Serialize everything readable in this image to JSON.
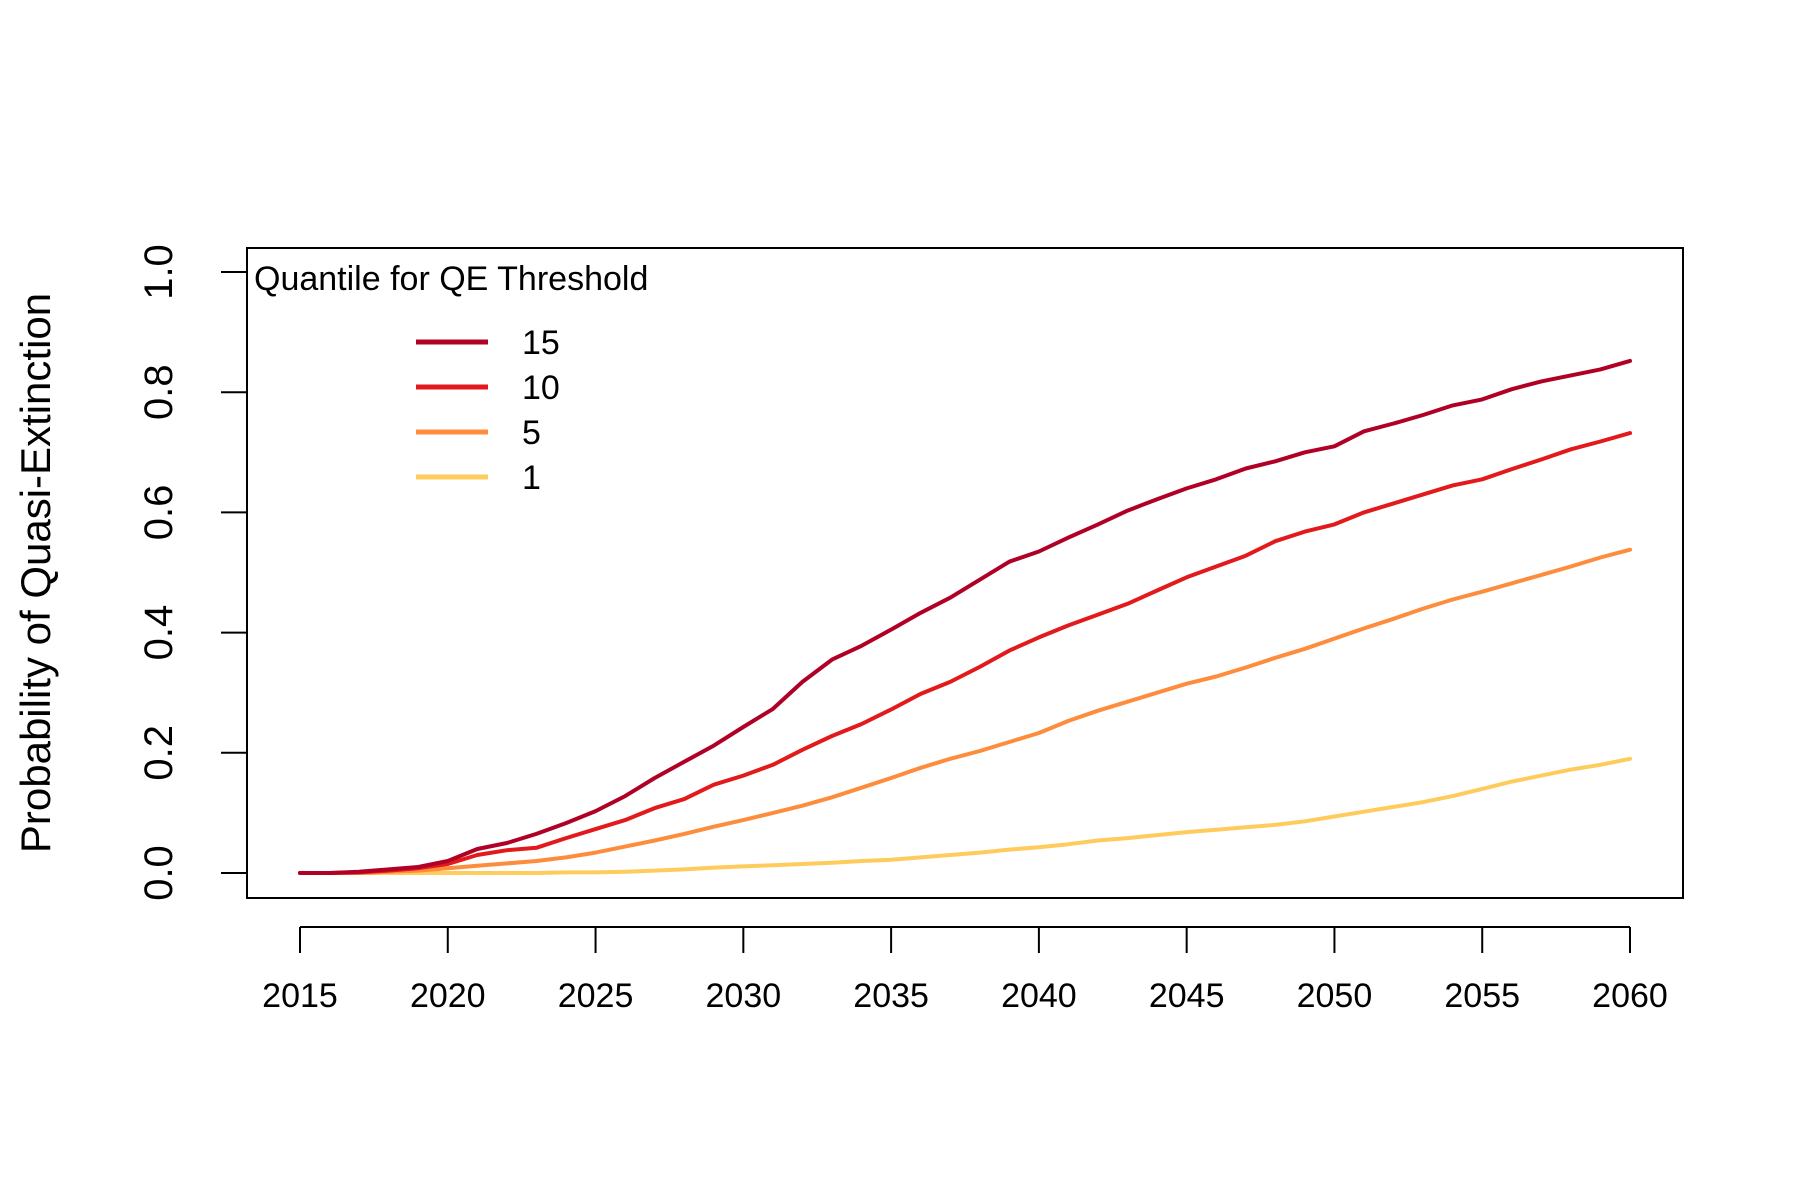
{
  "chart_data": {
    "type": "line",
    "title": "",
    "xlabel": "",
    "ylabel": "Probability of Quasi-Extinction",
    "xlim": [
      2015,
      2060
    ],
    "ylim": [
      0.0,
      1.0
    ],
    "x_ticks": [
      2015,
      2020,
      2025,
      2030,
      2035,
      2040,
      2045,
      2050,
      2055,
      2060
    ],
    "y_ticks": [
      "0.0",
      "0.2",
      "0.4",
      "0.6",
      "0.8",
      "1.0"
    ],
    "grid": false,
    "legend": {
      "title": "Quantile for QE Threshold",
      "position": "top-left"
    },
    "x": [
      2015,
      2016,
      2017,
      2018,
      2019,
      2020,
      2021,
      2022,
      2023,
      2024,
      2025,
      2026,
      2027,
      2028,
      2029,
      2030,
      2031,
      2032,
      2033,
      2034,
      2035,
      2036,
      2037,
      2038,
      2039,
      2040,
      2041,
      2042,
      2043,
      2044,
      2045,
      2046,
      2047,
      2048,
      2049,
      2050,
      2051,
      2052,
      2053,
      2054,
      2055,
      2056,
      2057,
      2058,
      2059,
      2060
    ],
    "series": [
      {
        "name": "15",
        "color": "#b10026",
        "values": [
          0,
          0,
          0.002,
          0.006,
          0.01,
          0.02,
          0.04,
          0.05,
          0.065,
          0.083,
          0.103,
          0.128,
          0.158,
          0.185,
          0.212,
          0.243,
          0.273,
          0.318,
          0.355,
          0.378,
          0.405,
          0.433,
          0.458,
          0.488,
          0.518,
          0.535,
          0.558,
          0.58,
          0.603,
          0.622,
          0.64,
          0.655,
          0.673,
          0.685,
          0.7,
          0.71,
          0.735,
          0.748,
          0.762,
          0.778,
          0.788,
          0.805,
          0.818,
          0.828,
          0.838,
          0.852
        ]
      },
      {
        "name": "10",
        "color": "#e31a1c",
        "values": [
          0,
          0,
          0.001,
          0.004,
          0.008,
          0.015,
          0.03,
          0.038,
          0.042,
          0.058,
          0.073,
          0.088,
          0.108,
          0.123,
          0.147,
          0.162,
          0.18,
          0.205,
          0.228,
          0.248,
          0.272,
          0.298,
          0.318,
          0.343,
          0.37,
          0.392,
          0.412,
          0.43,
          0.448,
          0.47,
          0.492,
          0.51,
          0.528,
          0.552,
          0.568,
          0.58,
          0.6,
          0.615,
          0.63,
          0.645,
          0.655,
          0.672,
          0.688,
          0.705,
          0.718,
          0.732
        ]
      },
      {
        "name": "5",
        "color": "#fd8d3c",
        "values": [
          0,
          0,
          0,
          0.002,
          0.004,
          0.008,
          0.012,
          0.016,
          0.02,
          0.026,
          0.034,
          0.044,
          0.054,
          0.065,
          0.077,
          0.088,
          0.1,
          0.112,
          0.126,
          0.142,
          0.158,
          0.175,
          0.19,
          0.203,
          0.218,
          0.233,
          0.253,
          0.27,
          0.285,
          0.3,
          0.315,
          0.327,
          0.342,
          0.358,
          0.373,
          0.39,
          0.407,
          0.423,
          0.44,
          0.455,
          0.468,
          0.482,
          0.496,
          0.51,
          0.525,
          0.538
        ]
      },
      {
        "name": "1",
        "color": "#fecc5c",
        "values": [
          0,
          0,
          0,
          0,
          0,
          0,
          0,
          0,
          0,
          0.001,
          0.001,
          0.002,
          0.004,
          0.006,
          0.009,
          0.011,
          0.013,
          0.015,
          0.017,
          0.02,
          0.022,
          0.026,
          0.03,
          0.034,
          0.039,
          0.043,
          0.048,
          0.054,
          0.058,
          0.063,
          0.068,
          0.072,
          0.076,
          0.08,
          0.086,
          0.094,
          0.102,
          0.11,
          0.118,
          0.128,
          0.14,
          0.152,
          0.162,
          0.172,
          0.18,
          0.19
        ]
      }
    ]
  }
}
